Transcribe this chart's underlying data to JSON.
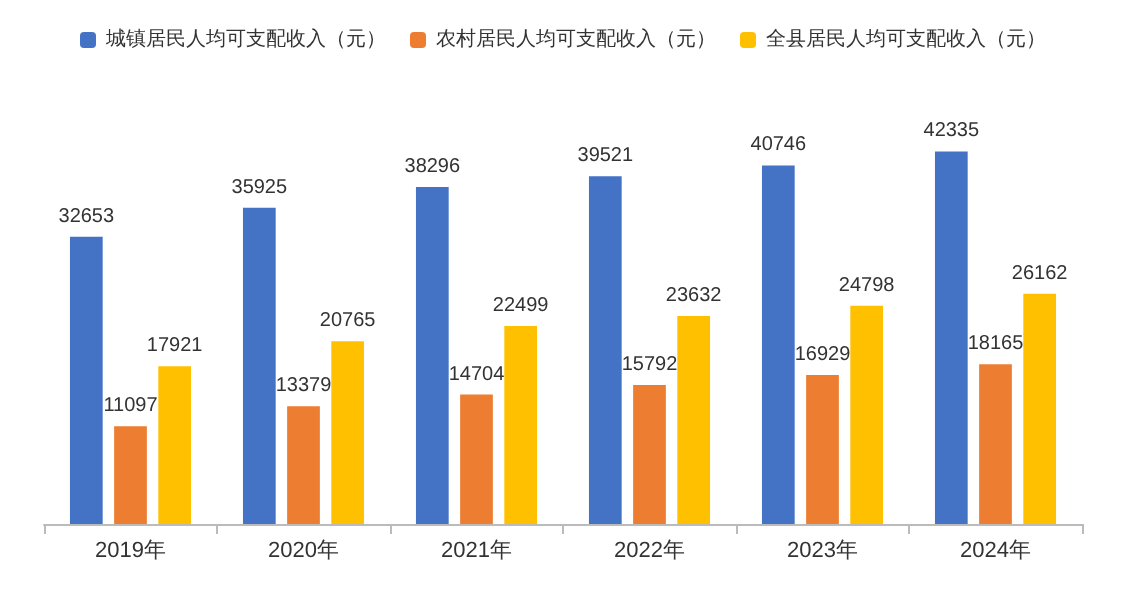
{
  "chart_data": {
    "type": "bar",
    "categories": [
      "2019年",
      "2020年",
      "2021年",
      "2022年",
      "2023年",
      "2024年"
    ],
    "series": [
      {
        "name": "城镇居民人均可支配收入（元）",
        "color": "#4472c4",
        "values": [
          32653,
          35925,
          38296,
          39521,
          40746,
          42335
        ]
      },
      {
        "name": "农村居民人均可支配收入（元）",
        "color": "#ed7d31",
        "values": [
          11097,
          13379,
          14704,
          15792,
          16929,
          18165
        ]
      },
      {
        "name": "全县居民人均可支配收入（元）",
        "color": "#ffc000",
        "values": [
          17921,
          20765,
          22499,
          23632,
          24798,
          26162
        ]
      }
    ],
    "data_labels": true,
    "legend": "top",
    "tick_labels": "x"
  }
}
